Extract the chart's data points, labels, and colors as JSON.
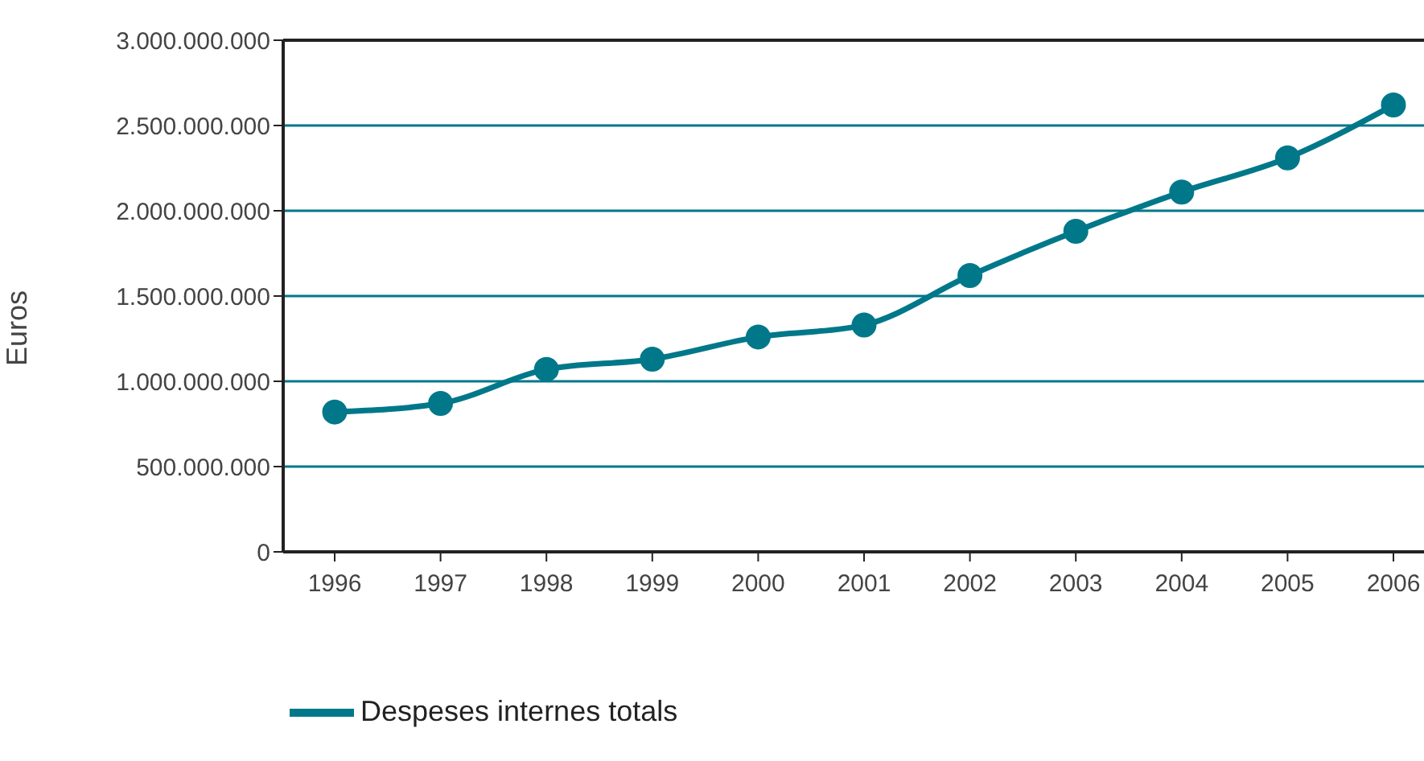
{
  "chart_data": {
    "type": "line",
    "ylabel": "Euros",
    "categories": [
      "1996",
      "1997",
      "1998",
      "1999",
      "2000",
      "2001",
      "2002",
      "2003",
      "2004",
      "2005",
      "2006"
    ],
    "series": [
      {
        "name": "Despeses internes totals",
        "color": "#00788a",
        "values": [
          820000000,
          870000000,
          1070000000,
          1130000000,
          1260000000,
          1330000000,
          1620000000,
          1880000000,
          2110000000,
          2310000000,
          2620000000
        ]
      }
    ],
    "ylim": [
      0,
      3000000000
    ],
    "yticks": [
      0,
      {
        "value": 500000000,
        "label": "500.000.000"
      },
      {
        "value": 1000000000,
        "label": "1.000.000.000"
      },
      {
        "value": 1500000000,
        "label": "1.500.000.000"
      },
      {
        "value": 2000000000,
        "label": "2.000.000.000"
      },
      {
        "value": 2500000000,
        "label": "2.500.000.000"
      },
      {
        "value": 3000000000,
        "label": "3.000.000.000"
      }
    ],
    "grid": "y",
    "legend": "bottom left",
    "marker": "circle",
    "line_style": "solid"
  }
}
